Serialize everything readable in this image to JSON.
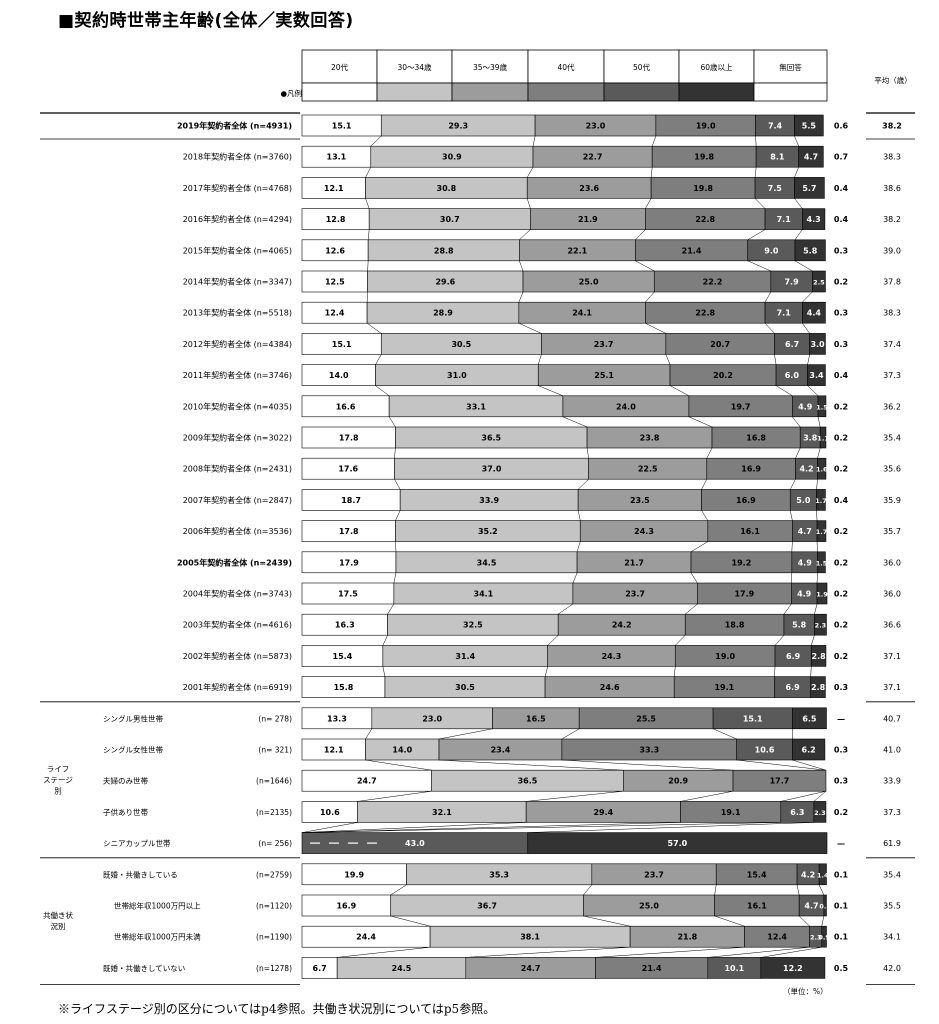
{
  "title": "■契約時世帯主年齢(全体／実数回答)",
  "footnote": "※ライフステージ別の区分についてはp4参照。共働き状況別についてはp5参照。",
  "unit_note": "（単位：%）",
  "legend_marker": "●凡例",
  "colors": {
    "20s": "#ffffff",
    "30-34": "#c4c4c4",
    "35-39": "#9c9c9c",
    "40s": "#7e7e7e",
    "50s": "#5a5a5a",
    "60plus": "#333333",
    "noanswer": "#ffffff"
  },
  "chart_data": {
    "type": "bar",
    "stacked": "100%",
    "categories_header": [
      "20代",
      "30〜34歳",
      "35〜39歳",
      "40代",
      "50代",
      "60歳以上",
      "無回答"
    ],
    "avg_header": "平均（歳）",
    "groups": [
      {
        "label": "ライフ\nステージ\n別",
        "rows": [
          19,
          20,
          21,
          22,
          23
        ]
      },
      {
        "label": "共働き状\n況別",
        "rows": [
          24,
          25,
          26,
          27
        ]
      }
    ],
    "rows": [
      {
        "label": "2019年契約者全体 (n=4931)",
        "bold": true,
        "values": [
          15.1,
          29.3,
          23.0,
          19.0,
          7.4,
          5.5
        ],
        "noanswer": "0.6",
        "average": "38.2"
      },
      {
        "label": "2018年契約者全体 (n=3760)",
        "values": [
          13.1,
          30.9,
          22.7,
          19.8,
          8.1,
          4.7
        ],
        "noanswer": "0.7",
        "average": "38.3"
      },
      {
        "label": "2017年契約者全体 (n=4768)",
        "values": [
          12.1,
          30.8,
          23.6,
          19.8,
          7.5,
          5.7
        ],
        "noanswer": "0.4",
        "average": "38.6"
      },
      {
        "label": "2016年契約者全体 (n=4294)",
        "values": [
          12.8,
          30.7,
          21.9,
          22.8,
          7.1,
          4.3
        ],
        "noanswer": "0.4",
        "average": "38.2"
      },
      {
        "label": "2015年契約者全体 (n=4065)",
        "values": [
          12.6,
          28.8,
          22.1,
          21.4,
          9.0,
          5.8
        ],
        "noanswer": "0.3",
        "average": "39.0"
      },
      {
        "label": "2014年契約者全体 (n=3347)",
        "values": [
          12.5,
          29.6,
          25.0,
          22.2,
          7.9,
          2.5
        ],
        "noanswer": "0.2",
        "average": "37.8"
      },
      {
        "label": "2013年契約者全体 (n=5518)",
        "values": [
          12.4,
          28.9,
          24.1,
          22.8,
          7.1,
          4.4
        ],
        "noanswer": "0.3",
        "average": "38.3"
      },
      {
        "label": "2012年契約者全体 (n=4384)",
        "values": [
          15.1,
          30.5,
          23.7,
          20.7,
          6.7,
          3.0
        ],
        "noanswer": "0.3",
        "average": "37.4"
      },
      {
        "label": "2011年契約者全体 (n=3746)",
        "values": [
          14.0,
          31.0,
          25.1,
          20.2,
          6.0,
          3.4
        ],
        "noanswer": "0.4",
        "average": "37.3"
      },
      {
        "label": "2010年契約者全体 (n=4035)",
        "values": [
          16.6,
          33.1,
          24.0,
          19.7,
          4.9,
          1.5
        ],
        "noanswer": "0.2",
        "average": "36.2"
      },
      {
        "label": "2009年契約者全体 (n=3022)",
        "values": [
          17.8,
          36.5,
          23.8,
          16.8,
          3.8,
          1.1
        ],
        "noanswer": "0.2",
        "average": "35.4"
      },
      {
        "label": "2008年契約者全体 (n=2431)",
        "values": [
          17.6,
          37.0,
          22.5,
          16.9,
          4.2,
          1.6
        ],
        "noanswer": "0.2",
        "average": "35.6"
      },
      {
        "label": "2007年契約者全体 (n=2847)",
        "values": [
          18.7,
          33.9,
          23.5,
          16.9,
          5.0,
          1.7
        ],
        "noanswer": "0.4",
        "average": "35.9"
      },
      {
        "label": "2006年契約者全体 (n=3536)",
        "values": [
          17.8,
          35.2,
          24.3,
          16.1,
          4.7,
          1.7
        ],
        "noanswer": "0.2",
        "average": "35.7"
      },
      {
        "label": "2005年契約者全体 (n=2439)",
        "bold": true,
        "values": [
          17.9,
          34.5,
          21.7,
          19.2,
          4.9,
          1.5
        ],
        "noanswer": "0.2",
        "average": "36.0"
      },
      {
        "label": "2004年契約者全体 (n=3743)",
        "values": [
          17.5,
          34.1,
          23.7,
          17.9,
          4.9,
          1.9
        ],
        "noanswer": "0.2",
        "average": "36.0"
      },
      {
        "label": "2003年契約者全体 (n=4616)",
        "values": [
          16.3,
          32.5,
          24.2,
          18.8,
          5.8,
          2.3
        ],
        "noanswer": "0.2",
        "average": "36.6"
      },
      {
        "label": "2002年契約者全体 (n=5873)",
        "values": [
          15.4,
          31.4,
          24.3,
          19.0,
          6.9,
          2.8
        ],
        "noanswer": "0.2",
        "average": "37.1"
      },
      {
        "label": "2001年契約者全体 (n=6919)",
        "values": [
          15.8,
          30.5,
          24.6,
          19.1,
          6.9,
          2.8
        ],
        "noanswer": "0.3",
        "average": "37.1"
      },
      {
        "label": "シングル男性世帯",
        "n": "(n= 278)",
        "values": [
          13.3,
          23.0,
          16.5,
          25.5,
          15.1,
          6.5
        ],
        "noanswer": "—",
        "average": "40.7"
      },
      {
        "label": "シングル女性世帯",
        "n": "(n= 321)",
        "values": [
          12.1,
          14.0,
          23.4,
          33.3,
          10.6,
          6.2
        ],
        "noanswer": "0.3",
        "average": "41.0"
      },
      {
        "label": "夫婦のみ世帯",
        "n": "(n=1646)",
        "values": [
          24.7,
          36.5,
          20.9,
          17.7,
          0,
          0
        ],
        "dashed": [
          4,
          5
        ],
        "noanswer": "0.3",
        "average": "33.9"
      },
      {
        "label": "子供あり世帯",
        "n": "(n=2135)",
        "values": [
          10.6,
          32.1,
          29.4,
          19.1,
          6.3,
          2.3
        ],
        "noanswer": "0.2",
        "average": "37.3"
      },
      {
        "label": "シニアカップル世帯",
        "n": "(n= 256)",
        "values": [
          0,
          0,
          0,
          0,
          43.0,
          57.0
        ],
        "dashed": [
          0,
          1,
          2,
          3
        ],
        "noanswer": "—",
        "average": "61.9"
      },
      {
        "label": "既婚・共働きしている",
        "n": "(n=2759)",
        "values": [
          19.9,
          35.3,
          23.7,
          15.4,
          4.2,
          1.4
        ],
        "noanswer": "0.1",
        "average": "35.4"
      },
      {
        "label": "世帯総年収1000万円以上",
        "n": "(n=1120)",
        "indent": true,
        "values": [
          16.9,
          36.7,
          25.0,
          16.1,
          4.7,
          0.5
        ],
        "noanswer": "0.1",
        "average": "35.5"
      },
      {
        "label": "世帯総年収1000万円未満",
        "n": "(n=1190)",
        "indent": true,
        "values": [
          24.4,
          38.1,
          21.8,
          12.4,
          2.3,
          0.9
        ],
        "noanswer": "0.1",
        "average": "34.1"
      },
      {
        "label": "既婚・共働きしていない",
        "n": "(n=1278)",
        "values": [
          6.7,
          24.5,
          24.7,
          21.4,
          10.1,
          12.2
        ],
        "noanswer": "0.5",
        "average": "42.0"
      }
    ]
  }
}
